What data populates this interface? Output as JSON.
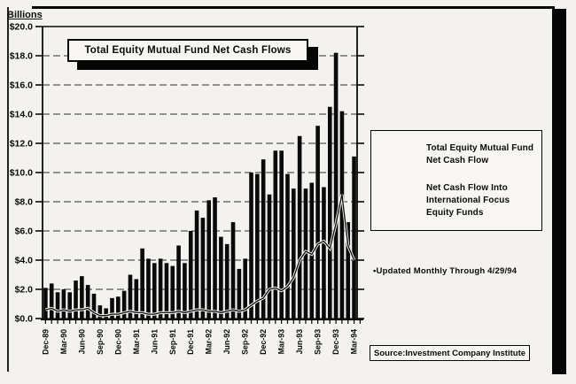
{
  "page": {
    "background": "#f3f2ee",
    "ink": "#0a0a0a"
  },
  "header": {
    "axis_unit_label": "Billions"
  },
  "title_box": {
    "text": "Total Equity Mutual Fund Net Cash Flows"
  },
  "legend": {
    "items": [
      {
        "swatch": "bar-swatch",
        "label": "Total Equity Mutual Fund Net Cash Flow"
      },
      {
        "swatch": "line-swatch",
        "label": "Net Cash Flow Into International Focus Equity Funds"
      }
    ]
  },
  "note": {
    "text": "•Updated Monthly Through 4/29/94"
  },
  "source_box": {
    "text": "Source:Investment Company Institute"
  },
  "chart_data": {
    "type": "bar",
    "title": "Total Equity Mutual Fund Net Cash Flows",
    "ylabel": "Billions",
    "xlabel": "",
    "ylim": [
      0,
      20
    ],
    "y_tick_step": 2,
    "grid": true,
    "legend_position": "right",
    "y_tick_labels": [
      "$0.0",
      "$2.0",
      "$4.0",
      "$6.0",
      "$8.0",
      "$10.0",
      "$12.0",
      "$14.0",
      "$16.0",
      "$18.0",
      "$20.0"
    ],
    "x_tick_labels": [
      "Dec-89",
      "Mar-90",
      "Jun-90",
      "Sep-90",
      "Dec-90",
      "Mar-91",
      "Jun-91",
      "Sep-91",
      "Dec-91",
      "Mar-92",
      "Jun-92",
      "Sep-92",
      "Dec-92",
      "Mar-93",
      "Jun-93",
      "Sep-93",
      "Dec-93",
      "Mar-94"
    ],
    "x_tick_every_n_bars": 3,
    "categories": [
      "Dec-89",
      "Jan-90",
      "Feb-90",
      "Mar-90",
      "Apr-90",
      "May-90",
      "Jun-90",
      "Jul-90",
      "Aug-90",
      "Sep-90",
      "Oct-90",
      "Nov-90",
      "Dec-90",
      "Jan-91",
      "Feb-91",
      "Mar-91",
      "Apr-91",
      "May-91",
      "Jun-91",
      "Jul-91",
      "Aug-91",
      "Sep-91",
      "Oct-91",
      "Nov-91",
      "Dec-91",
      "Jan-92",
      "Feb-92",
      "Mar-92",
      "Apr-92",
      "May-92",
      "Jun-92",
      "Jul-92",
      "Aug-92",
      "Sep-92",
      "Oct-92",
      "Nov-92",
      "Dec-92",
      "Jan-93",
      "Feb-93",
      "Mar-93",
      "Apr-93",
      "May-93",
      "Jun-93",
      "Jul-93",
      "Aug-93",
      "Sep-93",
      "Oct-93",
      "Nov-93",
      "Dec-93",
      "Jan-94",
      "Feb-94",
      "Mar-94"
    ],
    "series": [
      {
        "name": "Total Equity Mutual Fund Net Cash Flow",
        "type": "bar",
        "color": "#0a0a0a",
        "values": [
          2.1,
          2.4,
          1.8,
          2.0,
          1.8,
          2.6,
          2.9,
          2.3,
          1.7,
          0.9,
          0.7,
          1.4,
          1.5,
          1.9,
          3.0,
          2.7,
          4.8,
          4.1,
          3.8,
          4.1,
          3.8,
          3.6,
          5.0,
          3.8,
          6.0,
          7.4,
          6.9,
          8.1,
          8.3,
          5.6,
          5.1,
          6.6,
          3.4,
          4.1,
          10.0,
          9.9,
          10.9,
          8.5,
          11.5,
          11.5,
          9.9,
          8.9,
          12.5,
          8.9,
          9.3,
          13.2,
          9.0,
          14.5,
          18.2,
          14.2,
          6.6,
          11.1
        ]
      },
      {
        "name": "Net Cash Flow Into International Focus Equity Funds",
        "type": "line",
        "color": "#0a0a0a",
        "values": [
          0.6,
          0.7,
          0.5,
          0.6,
          0.5,
          0.6,
          0.6,
          0.7,
          0.4,
          0.2,
          0.2,
          0.3,
          0.3,
          0.4,
          0.5,
          0.4,
          0.4,
          0.3,
          0.3,
          0.4,
          0.4,
          0.4,
          0.5,
          0.4,
          0.5,
          0.6,
          0.6,
          0.5,
          0.5,
          0.4,
          0.5,
          0.6,
          0.5,
          0.6,
          0.9,
          1.2,
          1.4,
          2.0,
          2.1,
          1.9,
          2.2,
          2.8,
          4.0,
          4.6,
          4.4,
          5.1,
          5.3,
          4.8,
          6.5,
          8.5,
          5.0,
          4.0
        ]
      }
    ]
  }
}
